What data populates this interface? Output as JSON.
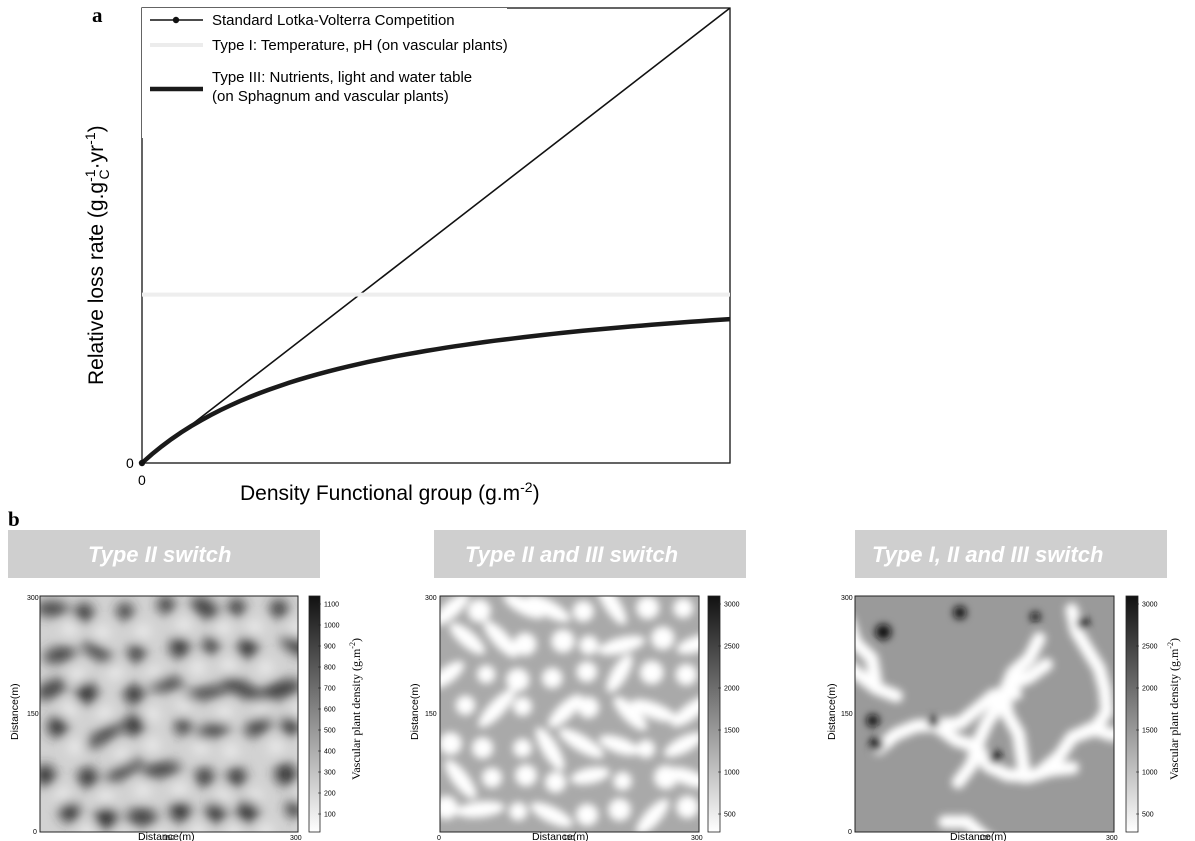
{
  "panel_a": {
    "letter": "a",
    "chart_data": {
      "type": "line",
      "xlabel": "Density Functional group (g.m",
      "xlabel_sup": "-2",
      "xlabel_end": ")",
      "ylabel_parts": [
        "Relative loss rate (g.g",
        "-1",
        "C",
        "·yr",
        "-1",
        ")"
      ],
      "x_ticks": [
        "0"
      ],
      "y_ticks": [
        "0"
      ],
      "xlim": [
        0,
        1
      ],
      "ylim": [
        0,
        1
      ],
      "series": [
        {
          "name": "Standard Lotka-Volterra Competition",
          "color": "#111111",
          "points": [
            [
              0,
              0
            ],
            [
              1,
              1
            ]
          ]
        },
        {
          "name": "Type I: Temperature, pH (on vascular plants)",
          "color": "#eeeeee",
          "points": [
            [
              0,
              0.37
            ],
            [
              1,
              0.37
            ]
          ]
        },
        {
          "name": "Type III: Nutrients, light and water table",
          "name_line2": "(on Sphagnum and vascular plants)",
          "color": "#1a1a1a",
          "points": [
            [
              0,
              0.0
            ],
            [
              0.03,
              0.05
            ],
            [
              0.08,
              0.1
            ],
            [
              0.15,
              0.145
            ],
            [
              0.25,
              0.19
            ],
            [
              0.35,
              0.222
            ],
            [
              0.45,
              0.245
            ],
            [
              0.55,
              0.262
            ],
            [
              0.65,
              0.277
            ],
            [
              0.75,
              0.29
            ],
            [
              0.85,
              0.301
            ],
            [
              1.0,
              0.315
            ]
          ]
        }
      ]
    }
  },
  "panel_b": {
    "letter": "b",
    "maps": [
      {
        "title": "Type II switch",
        "xlabel": "Distance(m)",
        "ylabel": "Distance(m)",
        "x_ticks": [
          "150",
          "300"
        ],
        "y_ticks": [
          "300",
          "150",
          "0"
        ],
        "colorbar_label": "Vascular plant density (g.m",
        "colorbar_sup": "-2",
        "colorbar_end": ")",
        "colorbar_ticks": [
          "1100",
          "1000",
          "900",
          "800",
          "700",
          "600",
          "500",
          "400",
          "300",
          "200",
          "100"
        ]
      },
      {
        "title": "Type II and III switch",
        "xlabel": "Distance(m)",
        "ylabel": "Distance(m)",
        "x_ticks": [
          "0",
          "150",
          "300"
        ],
        "y_ticks": [
          "300",
          "150"
        ],
        "colorbar_ticks": [
          "3000",
          "2500",
          "2000",
          "1500",
          "1000",
          "500"
        ]
      },
      {
        "title": "Type I, II and III switch",
        "xlabel": "Distance(m)",
        "ylabel": "Distance(m)",
        "x_ticks": [
          "150",
          "300"
        ],
        "y_ticks": [
          "300",
          "150",
          "0"
        ],
        "colorbar_label": "Vascular plant density (g.m",
        "colorbar_sup": "-2",
        "colorbar_end": ")",
        "colorbar_ticks": [
          "3000",
          "2500",
          "2000",
          "1500",
          "1000",
          "500"
        ]
      }
    ]
  }
}
